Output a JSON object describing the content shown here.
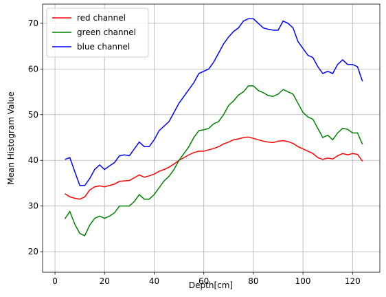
{
  "chart_data": {
    "type": "line",
    "xlabel": "Depth[cm]",
    "ylabel": "Mean Histogram Value",
    "x": [
      4,
      6,
      8,
      10,
      12,
      14,
      16,
      18,
      20,
      22,
      24,
      26,
      28,
      30,
      32,
      34,
      36,
      38,
      40,
      42,
      44,
      46,
      48,
      50,
      52,
      54,
      56,
      58,
      60,
      62,
      64,
      66,
      68,
      70,
      72,
      74,
      76,
      78,
      80,
      82,
      84,
      86,
      88,
      90,
      92,
      94,
      96,
      98,
      100,
      102,
      104,
      106,
      108,
      110,
      112,
      114,
      116,
      118,
      120,
      122,
      124
    ],
    "series": [
      {
        "name": "red channel",
        "color": "#ff0000",
        "values": [
          32.7,
          32,
          31.7,
          31.5,
          32,
          33.5,
          34.2,
          34.4,
          34.2,
          34.5,
          34.8,
          35.4,
          35.5,
          35.6,
          36.2,
          36.8,
          36.3,
          36.6,
          37,
          37.6,
          38,
          38.5,
          39.2,
          40,
          40.6,
          41.2,
          41.7,
          42,
          42,
          42.3,
          42.6,
          43,
          43.6,
          44,
          44.5,
          44.7,
          45,
          45.1,
          44.8,
          44.5,
          44.2,
          44,
          43.9,
          44.2,
          44.3,
          44.1,
          43.7,
          43,
          42.5,
          42,
          41.5,
          40.6,
          40.2,
          40.5,
          40.3,
          41,
          41.5,
          41.2,
          41.5,
          41.3,
          39.8
        ]
      },
      {
        "name": "green channel",
        "color": "#008000",
        "values": [
          27.2,
          28.8,
          26,
          24,
          23.5,
          25.8,
          27.3,
          27.8,
          27.3,
          27.8,
          28.5,
          30,
          30,
          30,
          31,
          32.5,
          31.5,
          31.5,
          32.5,
          34,
          35.5,
          36.5,
          38,
          40,
          41.5,
          43,
          45,
          46.5,
          46.7,
          47,
          48,
          48.5,
          50,
          52,
          53,
          54.3,
          55,
          56.3,
          56.3,
          55.3,
          54.8,
          54.2,
          54,
          54.5,
          55.5,
          55,
          54.5,
          52.5,
          50.5,
          49.5,
          49,
          47,
          45,
          45.5,
          44.5,
          46,
          47,
          46.8,
          46,
          46,
          43.5
        ]
      },
      {
        "name": "blue channel",
        "color": "#0000ff",
        "values": [
          40.2,
          40.6,
          37.5,
          34.5,
          34.5,
          36,
          38,
          39,
          38,
          38.8,
          39.5,
          41,
          41.2,
          41,
          42.5,
          44,
          43,
          43,
          44.5,
          46.5,
          47.5,
          48.5,
          50.5,
          52.5,
          54,
          55.5,
          57,
          59,
          59.5,
          60,
          61.5,
          63.5,
          65.5,
          67,
          68.2,
          69,
          70.5,
          71,
          71,
          70,
          69,
          68.7,
          68.5,
          68.5,
          70.5,
          70,
          69,
          66,
          64.5,
          63,
          62.5,
          60.5,
          59,
          59.5,
          59,
          61,
          62,
          61,
          61,
          60.5,
          57.3
        ]
      }
    ],
    "xlim": [
      -5,
      131
    ],
    "ylim": [
      15.5,
      74.2
    ],
    "xticks": [
      0,
      20,
      40,
      60,
      80,
      100,
      120
    ],
    "yticks": [
      20,
      30,
      40,
      50,
      60,
      70
    ],
    "grid": true,
    "legend": "upper left"
  }
}
